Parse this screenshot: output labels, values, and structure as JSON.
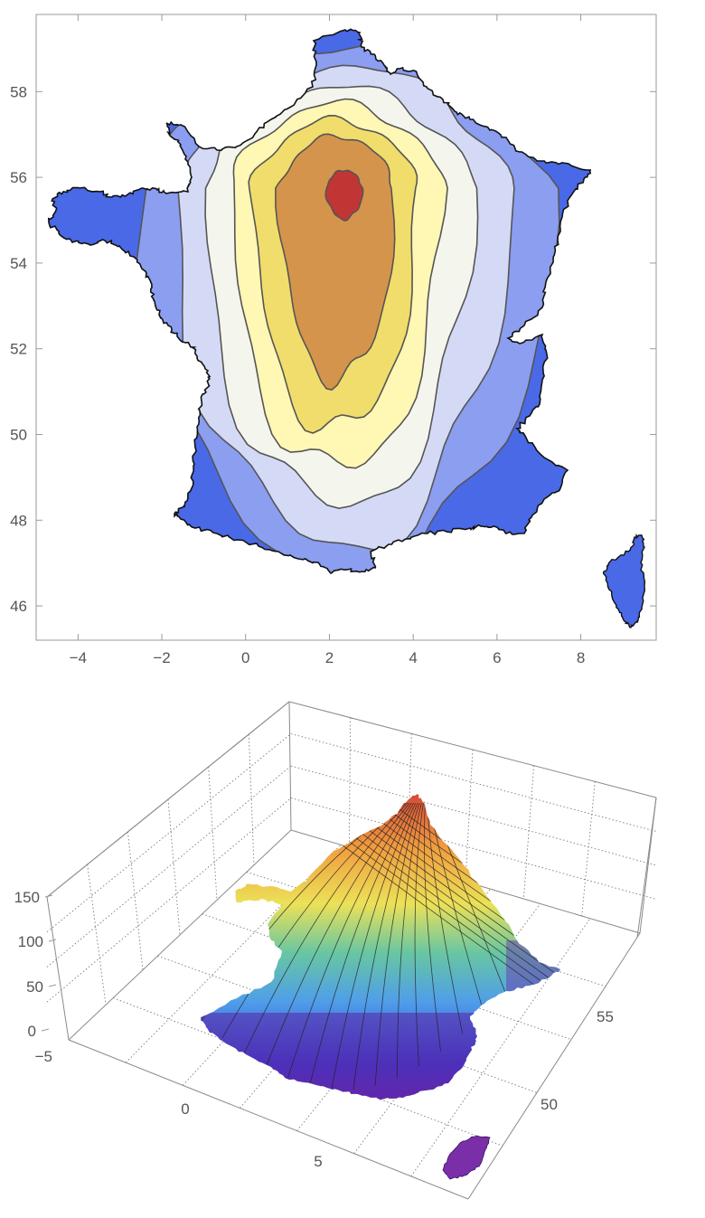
{
  "chart_data": [
    {
      "type": "contour",
      "xticks": [
        "-4",
        "-2",
        "0",
        "2",
        "4",
        "6",
        "8"
      ],
      "yticks": [
        "46",
        "48",
        "50",
        "52",
        "54",
        "56",
        "58"
      ],
      "xlim": [
        -5,
        9.8
      ],
      "ylim": [
        45.2,
        59.8
      ],
      "levels": 9,
      "peak": {
        "x": 2.4,
        "y": 56.0
      },
      "colors": [
        "#4a69e6",
        "#8b9ef0",
        "#d4daf6",
        "#f4f6ee",
        "#fff7b4",
        "#f1dd6c",
        "#d4944c",
        "#c23535"
      ]
    },
    {
      "type": "surface3d",
      "xticks": [
        "-5",
        "0",
        "5"
      ],
      "yticks": [
        "50",
        "55"
      ],
      "zticks": [
        "0",
        "50",
        "100",
        "150"
      ],
      "zlim": [
        0,
        150
      ],
      "peak": {
        "x": 2.4,
        "y": 56.0,
        "z": 150
      },
      "colormap": [
        "#6a2bb0",
        "#3d3fd0",
        "#4f9ee9",
        "#68c6a2",
        "#ece157",
        "#f19f40",
        "#d64a38"
      ]
    }
  ]
}
